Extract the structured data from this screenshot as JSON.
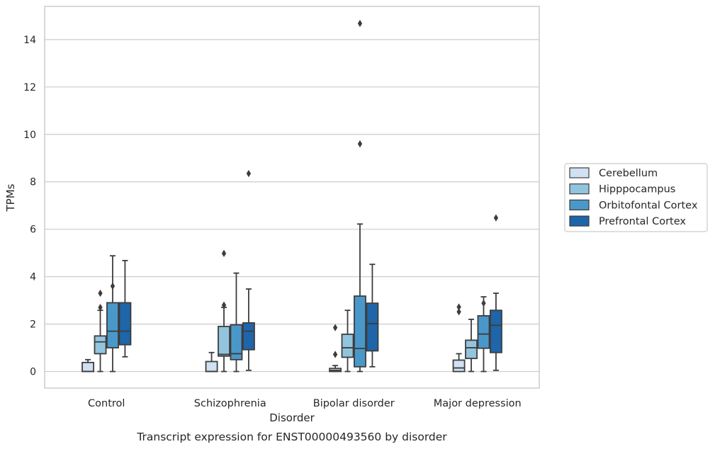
{
  "chart_data": {
    "type": "boxplot",
    "caption": "Transcript expression for ENST00000493560 by disorder",
    "xlabel": "Disorder",
    "ylabel": "TPMs",
    "ylim": [
      -0.7,
      15.4
    ],
    "yticks": [
      0,
      2,
      4,
      6,
      8,
      10,
      12,
      14
    ],
    "grid": "horizontal",
    "legend_position": "right",
    "categories": [
      "Control",
      "Schizophrenia",
      "Bipolar disorder",
      "Major depression"
    ],
    "series": [
      {
        "name": "Cerebellum",
        "color": "#cfe1f2",
        "boxes": [
          {
            "whislo": 0,
            "q1": 0,
            "med": 0,
            "q3": 0.38,
            "whishi": 0.5,
            "fliers": []
          },
          {
            "whislo": 0,
            "q1": 0,
            "med": 0,
            "q3": 0.42,
            "whishi": 0.8,
            "fliers": []
          },
          {
            "whislo": 0,
            "q1": 0,
            "med": 0.05,
            "q3": 0.13,
            "whishi": 0.25,
            "fliers": [
              1.85,
              0.72
            ]
          },
          {
            "whislo": 0,
            "q1": 0,
            "med": 0.15,
            "q3": 0.48,
            "whishi": 0.75,
            "fliers": [
              2.72,
              2.52
            ]
          }
        ]
      },
      {
        "name": "Hipppocampus",
        "color": "#93c4de",
        "boxes": [
          {
            "whislo": 0,
            "q1": 0.75,
            "med": 1.25,
            "q3": 1.5,
            "whishi": 2.58,
            "fliers": [
              3.3,
              2.7
            ]
          },
          {
            "whislo": 0,
            "q1": 0.65,
            "med": 0.72,
            "q3": 1.9,
            "whishi": 2.7,
            "fliers": [
              4.98,
              2.8
            ]
          },
          {
            "whislo": 0,
            "q1": 0.6,
            "med": 1.0,
            "q3": 1.57,
            "whishi": 2.58,
            "fliers": []
          },
          {
            "whislo": 0,
            "q1": 0.55,
            "med": 1.0,
            "q3": 1.32,
            "whishi": 2.2,
            "fliers": []
          }
        ]
      },
      {
        "name": "Orbitofontal Cortex",
        "color": "#4a98c9",
        "boxes": [
          {
            "whislo": 0,
            "q1": 1.0,
            "med": 1.7,
            "q3": 2.9,
            "whishi": 4.88,
            "fliers": [
              3.6
            ]
          },
          {
            "whislo": 0,
            "q1": 0.5,
            "med": 0.75,
            "q3": 1.97,
            "whishi": 4.15,
            "fliers": []
          },
          {
            "whislo": 0,
            "q1": 0.2,
            "med": 0.97,
            "q3": 3.18,
            "whishi": 6.22,
            "fliers": [
              14.68,
              9.6
            ]
          },
          {
            "whislo": 0,
            "q1": 0.98,
            "med": 1.58,
            "q3": 2.35,
            "whishi": 3.15,
            "fliers": [
              2.88
            ]
          }
        ]
      },
      {
        "name": "Prefrontal Cortex",
        "color": "#1f65a9",
        "boxes": [
          {
            "whislo": 0.62,
            "q1": 1.13,
            "med": 1.7,
            "q3": 2.9,
            "whishi": 4.68,
            "fliers": []
          },
          {
            "whislo": 0.05,
            "q1": 0.92,
            "med": 1.7,
            "q3": 2.05,
            "whishi": 3.48,
            "fliers": [
              8.35
            ]
          },
          {
            "whislo": 0.2,
            "q1": 0.87,
            "med": 2.02,
            "q3": 2.88,
            "whishi": 4.52,
            "fliers": []
          },
          {
            "whislo": 0.05,
            "q1": 0.8,
            "med": 1.95,
            "q3": 2.58,
            "whishi": 3.3,
            "fliers": [
              6.48
            ]
          }
        ]
      }
    ],
    "style": {
      "box_edge_color": "#3d3d3d",
      "grid_color": "#cccccc",
      "frame_color": "#cccccc"
    }
  }
}
